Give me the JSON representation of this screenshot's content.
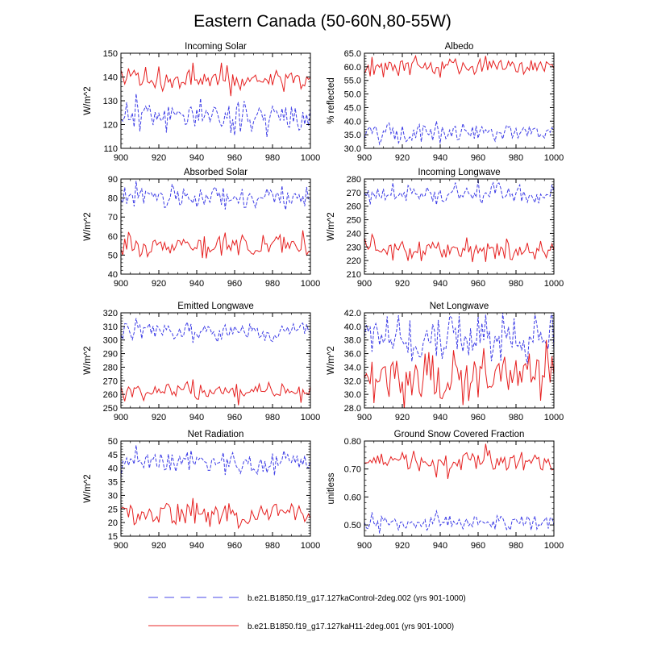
{
  "figure": {
    "title": "Eastern Canada (50-60N,80-55W)"
  },
  "legend": {
    "entries": [
      {
        "label": "b.e21.B1850.f19_g17.127kaControl-2deg.002 (yrs 901-1000)",
        "color": "#4a4ae8",
        "style": "dashed"
      },
      {
        "label": "b.e21.B1850.f19_g17.127kaH11-2deg.001 (yrs 901-1000)",
        "color": "#e82828",
        "style": "solid"
      }
    ]
  },
  "colors": {
    "control": "#3c3ce6",
    "h11": "#e62020"
  },
  "chart_data": [
    {
      "type": "line",
      "title": "Incoming Solar",
      "ylabel": "W/m^2",
      "xlim": [
        900,
        1000
      ],
      "ylim": [
        110,
        150
      ],
      "yticks": [
        110,
        120,
        130,
        140,
        150
      ],
      "ytick_labels": [
        "110",
        "120",
        "130",
        "140",
        "150"
      ],
      "xticks": [
        900,
        920,
        940,
        960,
        980,
        1000
      ],
      "series": [
        {
          "name": "control",
          "mean": 123.5,
          "amp": 3.2,
          "seed": 11,
          "spikes": [
            [
              908,
              133
            ],
            [
              960,
              115.5
            ],
            [
              942,
              131
            ]
          ]
        },
        {
          "name": "h11",
          "mean": 139,
          "amp": 2.6,
          "seed": 12,
          "spikes": [
            [
              900,
              143
            ],
            [
              938,
              146
            ],
            [
              953,
              146
            ]
          ]
        }
      ]
    },
    {
      "type": "line",
      "title": "Albedo",
      "ylabel": "% reflected",
      "xlim": [
        900,
        1000
      ],
      "ylim": [
        30,
        65
      ],
      "yticks": [
        30,
        35,
        40,
        45,
        50,
        55,
        60,
        65
      ],
      "ytick_labels": [
        "30.0",
        "35.0",
        "40.0",
        "45.0",
        "50.0",
        "55.0",
        "60.0",
        "65.0"
      ],
      "xticks": [
        900,
        920,
        940,
        960,
        980,
        1000
      ],
      "series": [
        {
          "name": "control",
          "mean": 35.8,
          "amp": 1.6,
          "seed": 21,
          "spikes": [
            [
              908,
              31.5
            ],
            [
              938,
              40
            ]
          ]
        },
        {
          "name": "h11",
          "mean": 60.3,
          "amp": 1.6,
          "seed": 22,
          "spikes": [
            [
              964,
              64
            ],
            [
              940,
              56
            ]
          ]
        }
      ]
    },
    {
      "type": "line",
      "title": "Absorbed Solar",
      "ylabel": "W/m^2",
      "xlim": [
        900,
        1000
      ],
      "ylim": [
        40,
        90
      ],
      "yticks": [
        40,
        50,
        60,
        70,
        80,
        90
      ],
      "ytick_labels": [
        "40",
        "50",
        "60",
        "70",
        "80",
        "90"
      ],
      "xticks": [
        900,
        920,
        940,
        960,
        980,
        1000
      ],
      "series": [
        {
          "name": "control",
          "mean": 80.5,
          "amp": 2.8,
          "seed": 31,
          "spikes": [
            [
              908,
              89
            ],
            [
              955,
              74
            ]
          ]
        },
        {
          "name": "h11",
          "mean": 55.5,
          "amp": 2.8,
          "seed": 32,
          "spikes": [
            [
              996,
              63
            ],
            [
              962,
              50
            ]
          ]
        }
      ]
    },
    {
      "type": "line",
      "title": "Incoming Longwave",
      "ylabel": "W/m^2",
      "xlim": [
        900,
        1000
      ],
      "ylim": [
        210,
        280
      ],
      "yticks": [
        210,
        220,
        230,
        240,
        250,
        260,
        270,
        280
      ],
      "ytick_labels": [
        "210",
        "220",
        "230",
        "240",
        "250",
        "260",
        "270",
        "280"
      ],
      "xticks": [
        900,
        920,
        940,
        960,
        980,
        1000
      ],
      "series": [
        {
          "name": "control",
          "mean": 268.5,
          "amp": 4,
          "seed": 41,
          "spikes": [
            [
              960,
              280
            ],
            [
              938,
              261
            ]
          ]
        },
        {
          "name": "h11",
          "mean": 228,
          "amp": 4.2,
          "seed": 42,
          "spikes": [
            [
              905,
              236
            ],
            [
              964,
              219
            ]
          ]
        }
      ]
    },
    {
      "type": "line",
      "title": "Emitted Longwave",
      "ylabel": "W/m^2",
      "xlim": [
        900,
        1000
      ],
      "ylim": [
        250,
        320
      ],
      "yticks": [
        250,
        260,
        270,
        280,
        290,
        300,
        310,
        320
      ],
      "ytick_labels": [
        "250",
        "260",
        "270",
        "280",
        "290",
        "300",
        "310",
        "320"
      ],
      "xticks": [
        900,
        920,
        940,
        960,
        980,
        1000
      ],
      "series": [
        {
          "name": "control",
          "mean": 306,
          "amp": 3.5,
          "seed": 51,
          "spikes": [
            [
              908,
              316
            ],
            [
              938,
              298
            ]
          ]
        },
        {
          "name": "h11",
          "mean": 262,
          "amp": 3.6,
          "seed": 52,
          "spikes": [
            [
              902,
              255
            ],
            [
              938,
              271
            ],
            [
              962,
              252
            ]
          ]
        }
      ]
    },
    {
      "type": "line",
      "title": "Net Longwave",
      "ylabel": "W/m^2",
      "xlim": [
        900,
        1000
      ],
      "ylim": [
        28,
        42
      ],
      "yticks": [
        28,
        30,
        32,
        34,
        36,
        38,
        40,
        42
      ],
      "ytick_labels": [
        "28.0",
        "30.0",
        "32.0",
        "34.0",
        "36.0",
        "38.0",
        "40.0",
        "42.0"
      ],
      "xticks": [
        900,
        920,
        940,
        960,
        980,
        1000
      ],
      "series": [
        {
          "name": "control",
          "mean": 38,
          "amp": 1.8,
          "seed": 61,
          "spikes": [
            [
              950,
              41.5
            ],
            [
              960,
              41.5
            ],
            [
              930,
              35.5
            ]
          ]
        },
        {
          "name": "h11",
          "mean": 32.5,
          "amp": 1.8,
          "seed": 62,
          "spikes": [
            [
              996,
              38
            ],
            [
              940,
              29.5
            ],
            [
              932,
              36
            ]
          ]
        }
      ]
    },
    {
      "type": "line",
      "title": "Net Radiation",
      "ylabel": "W/m^2",
      "xlim": [
        900,
        1000
      ],
      "ylim": [
        15,
        50
      ],
      "yticks": [
        15,
        20,
        25,
        30,
        35,
        40,
        45,
        50
      ],
      "ytick_labels": [
        "15",
        "20",
        "25",
        "30",
        "35",
        "40",
        "45",
        "50"
      ],
      "xticks": [
        900,
        920,
        940,
        960,
        980,
        1000
      ],
      "series": [
        {
          "name": "control",
          "mean": 42.5,
          "amp": 2.2,
          "seed": 71,
          "spikes": [
            [
              908,
              48.5
            ],
            [
              955,
              37.5
            ]
          ]
        },
        {
          "name": "h11",
          "mean": 23,
          "amp": 2.4,
          "seed": 72,
          "spikes": [
            [
              938,
              29
            ],
            [
              962,
              18
            ]
          ]
        }
      ]
    },
    {
      "type": "line",
      "title": "Ground Snow Covered Fraction",
      "ylabel": "unitless",
      "xlim": [
        900,
        1000
      ],
      "ylim": [
        0.46,
        0.8
      ],
      "yticks": [
        0.5,
        0.6,
        0.7,
        0.8
      ],
      "ytick_labels": [
        "0.50",
        "0.60",
        "0.70",
        "0.80"
      ],
      "xticks": [
        900,
        920,
        940,
        960,
        980,
        1000
      ],
      "series": [
        {
          "name": "control",
          "mean": 0.508,
          "amp": 0.015,
          "seed": 81,
          "spikes": [
            [
              904,
              0.545
            ],
            [
              938,
              0.55
            ],
            [
              908,
              0.47
            ]
          ]
        },
        {
          "name": "h11",
          "mean": 0.725,
          "amp": 0.018,
          "seed": 82,
          "spikes": [
            [
              964,
              0.79
            ],
            [
              938,
              0.67
            ],
            [
              944,
              0.665
            ]
          ]
        }
      ]
    }
  ]
}
